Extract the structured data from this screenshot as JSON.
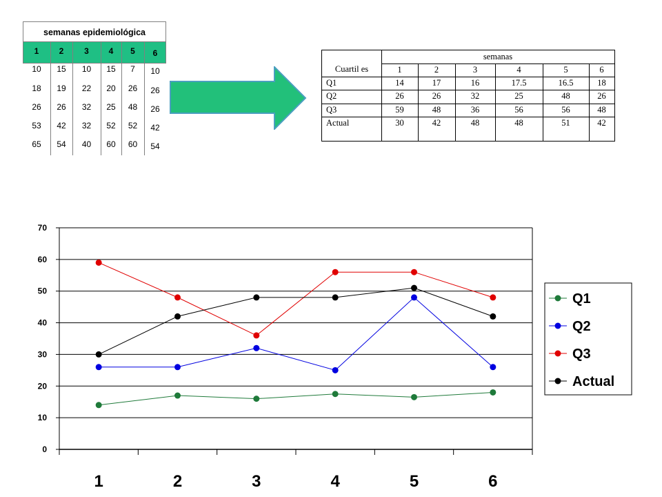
{
  "left_table": {
    "title": "semanas epidemiológica",
    "headers": [
      "1",
      "2",
      "3",
      "4",
      "5",
      "6"
    ],
    "columns": [
      [
        "10",
        "18",
        "26",
        "53",
        "65"
      ],
      [
        "15",
        "19",
        "26",
        "42",
        "54"
      ],
      [
        "10",
        "22",
        "32",
        "32",
        "40"
      ],
      [
        "15",
        "20",
        "25",
        "52",
        "60"
      ],
      [
        "7",
        "26",
        "48",
        "52",
        "60"
      ],
      [
        "10",
        "26",
        "26",
        "42",
        "54"
      ]
    ],
    "header_color": "#1fbf84"
  },
  "arrow": {
    "color": "#22c07a",
    "icon": "right-arrow-icon"
  },
  "right_table": {
    "group_header": "semanas",
    "row_header": "Cuartil es",
    "weeks": [
      "1",
      "2",
      "3",
      "4",
      "5",
      "6"
    ],
    "rows": [
      {
        "label": "Q1",
        "values": [
          "14",
          "17",
          "16",
          "17.5",
          "16.5",
          "18"
        ]
      },
      {
        "label": "Q2",
        "values": [
          "26",
          "26",
          "32",
          "25",
          "48",
          "26"
        ]
      },
      {
        "label": "Q3",
        "values": [
          "59",
          "48",
          "36",
          "56",
          "56",
          "48"
        ]
      },
      {
        "label": "Actual",
        "values": [
          "30",
          "42",
          "48",
          "48",
          "51",
          "42"
        ]
      }
    ]
  },
  "chart_data": {
    "type": "line",
    "categories": [
      "1",
      "2",
      "3",
      "4",
      "5",
      "6"
    ],
    "ylim": [
      0,
      70
    ],
    "yticks": [
      "0",
      "10",
      "20",
      "30",
      "40",
      "50",
      "60",
      "70"
    ],
    "grid": true,
    "legend_position": "right",
    "series": [
      {
        "name": "Q1",
        "color": "#1f7a3a",
        "values": [
          14,
          17,
          16,
          17.5,
          16.5,
          18
        ]
      },
      {
        "name": "Q2",
        "color": "#0000e0",
        "values": [
          26,
          26,
          32,
          25,
          48,
          26
        ]
      },
      {
        "name": "Q3",
        "color": "#e00000",
        "values": [
          59,
          48,
          36,
          56,
          56,
          48
        ]
      },
      {
        "name": "Actual",
        "color": "#000000",
        "values": [
          30,
          42,
          48,
          48,
          51,
          42
        ]
      }
    ]
  }
}
